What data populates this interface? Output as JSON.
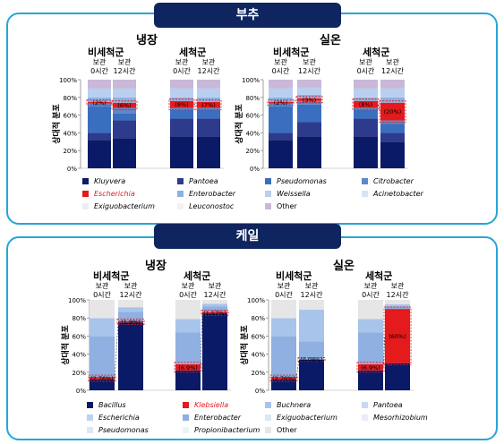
{
  "sections": [
    {
      "title": "부추",
      "groups": [
        "냉장",
        "실온"
      ],
      "subgroups": [
        "비세척군",
        "세척군"
      ],
      "columns": [
        "보관\n0시간",
        "보관\n12시간"
      ],
      "ylabel": "상대적 분포",
      "ticks": [
        "0%",
        "20%",
        "40%",
        "60%",
        "80%",
        "100%"
      ],
      "legend": [
        {
          "name": "Kluyvera",
          "color": "#0b1a66",
          "red": false
        },
        {
          "name": "Pantoea",
          "color": "#2e3a8c",
          "red": false
        },
        {
          "name": "Pseudomonas",
          "color": "#3a6fbf",
          "red": false
        },
        {
          "name": "Citrobacter",
          "color": "#5f87cc",
          "red": false
        },
        {
          "name": "Escherichia",
          "color": "#e41a1c",
          "red": true
        },
        {
          "name": "Enterobacter",
          "color": "#8fb0e0",
          "red": false
        },
        {
          "name": "Weissella",
          "color": "#b8cff0",
          "red": false
        },
        {
          "name": "Acinetobacter",
          "color": "#d6e4f7",
          "red": false
        },
        {
          "name": "Exiguobacterium",
          "color": "#eaeef5",
          "red": false
        },
        {
          "name": "Leuconostoc",
          "color": "#f2f2f2",
          "red": false
        },
        {
          "name": "Other",
          "color": "#c9b8d8",
          "red": false
        }
      ]
    },
    {
      "title": "케일",
      "groups": [
        "냉장",
        "실온"
      ],
      "subgroups": [
        "비세척군",
        "세척군"
      ],
      "columns": [
        "보관\n0시간",
        "보관\n12시간"
      ],
      "ylabel": "상대적 분포",
      "ticks": [
        "0%",
        "20%",
        "40%",
        "60%",
        "80%",
        "100%"
      ],
      "legend": [
        {
          "name": "Bacillus",
          "color": "#0b1a66",
          "red": false
        },
        {
          "name": "Klebsiella",
          "color": "#e41a1c",
          "red": true
        },
        {
          "name": "Buchnera",
          "color": "#a9c4ea",
          "red": false
        },
        {
          "name": "Pantoea",
          "color": "#c7d9f2",
          "red": false
        },
        {
          "name": "Escherichia",
          "color": "#bcd2ef",
          "red": false
        },
        {
          "name": "Enterobacter",
          "color": "#8fb0e0",
          "red": false
        },
        {
          "name": "Exiguobacterium",
          "color": "#d9e6f7",
          "red": false
        },
        {
          "name": "Mesorhizobium",
          "color": "#e8eef8",
          "red": false
        },
        {
          "name": "Pseudomonas",
          "color": "#dfe7f3",
          "red": false
        },
        {
          "name": "Propionibacterium",
          "color": "#eef2f8",
          "red": false
        },
        {
          "name": "Other",
          "color": "#e6e6e6",
          "red": false
        }
      ]
    }
  ],
  "chart_data": [
    {
      "type": "bar",
      "title": "부추 냉장",
      "ylabel": "상대적 분포",
      "ylim": [
        0,
        100
      ],
      "categories": [
        "비세척군 보관 0시간",
        "비세척군 보관 12시간",
        "세척군 보관 0시간",
        "세척군 보관 12시간"
      ],
      "series": [
        {
          "name": "Kluyvera",
          "values": [
            32,
            34,
            36,
            36
          ]
        },
        {
          "name": "Pantoea",
          "values": [
            8,
            20,
            20,
            20
          ]
        },
        {
          "name": "Pseudomonas",
          "values": [
            30,
            8,
            10,
            10
          ]
        },
        {
          "name": "Citrobacter",
          "values": [
            3,
            6,
            2,
            2
          ]
        },
        {
          "name": "Escherichia",
          "values": [
            2,
            6,
            8,
            7
          ]
        },
        {
          "name": "Enterobacter",
          "values": [
            5,
            6,
            4,
            5
          ]
        },
        {
          "name": "Weissella",
          "values": [
            10,
            10,
            10,
            10
          ]
        },
        {
          "name": "Other",
          "values": [
            10,
            10,
            10,
            10
          ]
        }
      ],
      "annotations": [
        "(2%)",
        "(6%)",
        "(8%)",
        "(7%)"
      ]
    },
    {
      "type": "bar",
      "title": "부추 실온",
      "ylabel": "상대적 분포",
      "ylim": [
        0,
        100
      ],
      "categories": [
        "비세척군 보관 0시간",
        "비세척군 보관 12시간",
        "세척군 보관 0시간",
        "세척군 보관 12시간"
      ],
      "series": [
        {
          "name": "Kluyvera",
          "values": [
            32,
            36,
            36,
            30
          ]
        },
        {
          "name": "Pantoea",
          "values": [
            8,
            16,
            20,
            10
          ]
        },
        {
          "name": "Pseudomonas",
          "values": [
            30,
            20,
            10,
            10
          ]
        },
        {
          "name": "Citrobacter",
          "values": [
            3,
            4,
            2,
            4
          ]
        },
        {
          "name": "Escherichia",
          "values": [
            2,
            3,
            8,
            20
          ]
        },
        {
          "name": "Enterobacter",
          "values": [
            5,
            4,
            4,
            6
          ]
        },
        {
          "name": "Weissella",
          "values": [
            10,
            8,
            10,
            10
          ]
        },
        {
          "name": "Other",
          "values": [
            10,
            9,
            10,
            10
          ]
        }
      ],
      "annotations": [
        "(2%)",
        "(3%)",
        "(8%)",
        "(20%)"
      ]
    },
    {
      "type": "bar",
      "title": "케일 냉장",
      "ylabel": "상대적 분포",
      "ylim": [
        0,
        100
      ],
      "categories": [
        "비세척군 보관 0시간",
        "비세척군 보관 12시간",
        "세척군 보관 0시간",
        "세척군 보관 12시간"
      ],
      "series": [
        {
          "name": "Bacillus",
          "values": [
            12,
            75,
            22,
            85
          ]
        },
        {
          "name": "Klebsiella",
          "values": [
            2.76,
            1.9,
            6.9,
            1.57
          ]
        },
        {
          "name": "Enterobacter",
          "values": [
            45,
            10,
            35,
            6
          ]
        },
        {
          "name": "Buchnera",
          "values": [
            20,
            5,
            15,
            3
          ]
        },
        {
          "name": "Other",
          "values": [
            20.24,
            8.1,
            21.1,
            4.43
          ]
        }
      ],
      "annotations": [
        "(2.76%)",
        "(1.9%)",
        "(6.9%)",
        "(1.57%)"
      ]
    },
    {
      "type": "bar",
      "title": "케일 실온",
      "ylabel": "상대적 분포",
      "ylim": [
        0,
        100
      ],
      "categories": [
        "비세척군 보관 0시간",
        "비세척군 보관 12시간",
        "세척군 보관 0시간",
        "세척군 보관 12시간"
      ],
      "series": [
        {
          "name": "Bacillus",
          "values": [
            12,
            34,
            22,
            30
          ]
        },
        {
          "name": "Klebsiella",
          "values": [
            2.76,
            0.08,
            6.9,
            60
          ]
        },
        {
          "name": "Enterobacter",
          "values": [
            45,
            20,
            35,
            3
          ]
        },
        {
          "name": "Buchnera",
          "values": [
            20,
            35,
            15,
            2
          ]
        },
        {
          "name": "Other",
          "values": [
            20.24,
            10.92,
            21.1,
            5
          ]
        }
      ],
      "annotations": [
        "(2.76%)",
        "(0.08%)",
        "(6.9%)",
        "(60%)"
      ]
    }
  ]
}
